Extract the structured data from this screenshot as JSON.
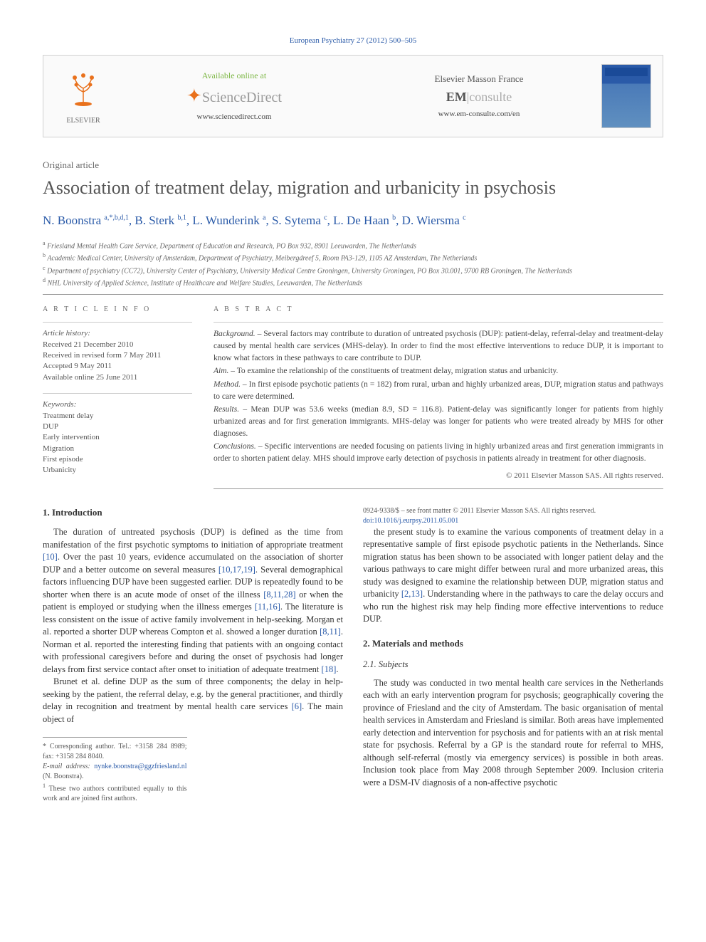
{
  "journal_header": "European Psychiatry 27 (2012) 500–505",
  "banner": {
    "elsevier": "ELSEVIER",
    "available": "Available online at",
    "sd_name": "ScienceDirect",
    "sd_url": "www.sciencedirect.com",
    "em_publisher": "Elsevier Masson France",
    "em_name_prefix": "EM",
    "em_name_rest": "|consulte",
    "em_url": "www.em-consulte.com/en"
  },
  "article_type": "Original article",
  "title": "Association of treatment delay, migration and urbanicity in psychosis",
  "authors_html": "N. Boonstra <sup>a,*,b,d,1</sup>, B. Sterk <sup>b,1</sup>, L. Wunderink <sup>a</sup>, S. Sytema <sup>c</sup>, L. De Haan <sup>b</sup>, D. Wiersma <sup>c</sup>",
  "authors": [
    {
      "name": "N. Boonstra",
      "sup": "a,*,b,d,1"
    },
    {
      "name": "B. Sterk",
      "sup": "b,1"
    },
    {
      "name": "L. Wunderink",
      "sup": "a"
    },
    {
      "name": "S. Sytema",
      "sup": "c"
    },
    {
      "name": "L. De Haan",
      "sup": "b"
    },
    {
      "name": "D. Wiersma",
      "sup": "c"
    }
  ],
  "affiliations": [
    {
      "sup": "a",
      "text": "Friesland Mental Health Care Service, Department of Education and Research, PO Box 932, 8901 Leeuwarden, The Netherlands"
    },
    {
      "sup": "b",
      "text": "Academic Medical Center, University of Amsterdam, Department of Psychiatry, Meibergdreef 5, Room PA3-129, 1105 AZ Amsterdam, The Netherlands"
    },
    {
      "sup": "c",
      "text": "Department of psychiatry (CC72), University Center of Psychiatry, University Medical Centre Groningen, University Groningen, PO Box 30.001, 9700 RB Groningen, The Netherlands"
    },
    {
      "sup": "d",
      "text": "NHL University of Applied Science, Institute of Healthcare and Welfare Studies, Leeuwarden, The Netherlands"
    }
  ],
  "info": {
    "label": "A R T I C L E  I N F O",
    "history_label": "Article history:",
    "history": [
      "Received 21 December 2010",
      "Received in revised form 7 May 2011",
      "Accepted 9 May 2011",
      "Available online 25 June 2011"
    ],
    "keywords_label": "Keywords:",
    "keywords": [
      "Treatment delay",
      "DUP",
      "Early intervention",
      "Migration",
      "First episode",
      "Urbanicity"
    ]
  },
  "abstract": {
    "label": "A B S T R A C T",
    "sections": [
      {
        "label": "Background. –",
        "text": "Several factors may contribute to duration of untreated psychosis (DUP): patient-delay, referral-delay and treatment-delay caused by mental health care services (MHS-delay). In order to find the most effective interventions to reduce DUP, it is important to know what factors in these pathways to care contribute to DUP."
      },
      {
        "label": "Aim. –",
        "text": "To examine the relationship of the constituents of treatment delay, migration status and urbanicity."
      },
      {
        "label": "Method. –",
        "text": "In first episode psychotic patients (n = 182) from rural, urban and highly urbanized areas, DUP, migration status and pathways to care were determined."
      },
      {
        "label": "Results. –",
        "text": "Mean DUP was 53.6 weeks (median 8.9, SD = 116.8). Patient-delay was significantly longer for patients from highly urbanized areas and for first generation immigrants. MHS-delay was longer for patients who were treated already by MHS for other diagnoses."
      },
      {
        "label": "Conclusions. –",
        "text": "Specific interventions are needed focusing on patients living in highly urbanized areas and first generation immigrants in order to shorten patient delay. MHS should improve early detection of psychosis in patients already in treatment for other diagnosis."
      }
    ],
    "copyright": "© 2011 Elsevier Masson SAS. All rights reserved."
  },
  "body": {
    "intro_heading": "1. Introduction",
    "intro_p1": "The duration of untreated psychosis (DUP) is defined as the time from manifestation of the first psychotic symptoms to initiation of appropriate treatment [10]. Over the past 10 years, evidence accumulated on the association of shorter DUP and a better outcome on several measures [10,17,19]. Several demographical factors influencing DUP have been suggested earlier. DUP is repeatedly found to be shorter when there is an acute mode of onset of the illness [8,11,28] or when the patient is employed or studying when the illness emerges [11,16]. The literature is less consistent on the issue of active family involvement in help-seeking. Morgan et al. reported a shorter DUP whereas Compton et al. showed a longer duration [8,11]. Norman et al. reported the interesting finding that patients with an ongoing contact with professional caregivers before and during the onset of psychosis had longer delays from first service contact after onset to initiation of adequate treatment [18].",
    "intro_p2": "Brunet et al. define DUP as the sum of three components; the delay in help-seeking by the patient, the referral delay, e.g. by the general practitioner, and thirdly delay in recognition and treatment by mental health care services [6]. The main object of",
    "intro_p3": "the present study is to examine the various components of treatment delay in a representative sample of first episode psychotic patients in the Netherlands. Since migration status has been shown to be associated with longer patient delay and the various pathways to care might differ between rural and more urbanized areas, this study was designed to examine the relationship between DUP, migration status and urbanicity [2,13]. Understanding where in the pathways to care the delay occurs and who run the highest risk may help finding more effective interventions to reduce DUP.",
    "methods_heading": "2. Materials and methods",
    "subjects_heading": "2.1. Subjects",
    "subjects_p1": "The study was conducted in two mental health care services in the Netherlands each with an early intervention program for psychosis; geographically covering the province of Friesland and the city of Amsterdam. The basic organisation of mental health services in Amsterdam and Friesland is similar. Both areas have implemented early detection and intervention for psychosis and for patients with an at risk mental state for psychosis. Referral by a GP is the standard route for referral to MHS, although self-referral (mostly via emergency services) is possible in both areas. Inclusion took place from May 2008 through September 2009. Inclusion criteria were a DSM-IV diagnosis of a non-affective psychotic"
  },
  "footnotes": {
    "corr_label": "* Corresponding author. Tel.: +3158 284 8989; fax: +3158 284 8040.",
    "email_label": "E-mail address:",
    "email": "nynke.boonstra@ggzfriesland.nl",
    "email_person": "(N. Boonstra).",
    "note1": "These two authors contributed equally to this work and are joined first authors."
  },
  "footer": {
    "line1": "0924-9338/$ – see front matter © 2011 Elsevier Masson SAS. All rights reserved.",
    "doi": "doi:10.1016/j.eurpsy.2011.05.001"
  },
  "colors": {
    "link": "#2a5aa8",
    "orange": "#e9711c",
    "green": "#7fb848",
    "text": "#333333",
    "muted": "#666666",
    "rule": "#999999"
  }
}
